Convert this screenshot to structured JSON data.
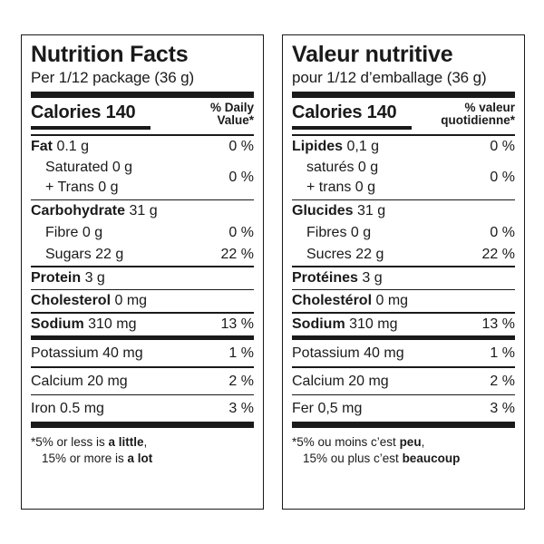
{
  "en": {
    "title": "Nutrition Facts",
    "serving": "Per 1/12 package (36 g)",
    "calories_label": "Calories 140",
    "dv_line1": "% Daily",
    "dv_line2": "Value*",
    "fat_label": "Fat",
    "fat_amount": "0.1 g",
    "fat_dv": "0 %",
    "saturated": "Saturated 0 g",
    "trans": "+ Trans 0 g",
    "sat_trans_dv": "0 %",
    "carb_label": "Carbohydrate",
    "carb_amount": "31 g",
    "fibre": "Fibre 0 g",
    "fibre_dv": "0 %",
    "sugars": "Sugars 22 g",
    "sugars_dv": "22 %",
    "protein_label": "Protein",
    "protein_amount": "3 g",
    "cholesterol_label": "Cholesterol",
    "cholesterol_amount": "0 mg",
    "sodium_label": "Sodium",
    "sodium_amount": "310 mg",
    "sodium_dv": "13 %",
    "potassium": "Potassium 40 mg",
    "potassium_dv": "1 %",
    "calcium": "Calcium 20 mg",
    "calcium_dv": "2 %",
    "iron": "Iron 0.5 mg",
    "iron_dv": "3 %",
    "foot1_pre": "*5% or less is ",
    "foot1_bold": "a little",
    "foot1_post": ",",
    "foot2_pre": "15% or more is ",
    "foot2_bold": "a lot"
  },
  "fr": {
    "title": "Valeur nutritive",
    "serving": "pour 1/12 d’emballage (36 g)",
    "calories_label": "Calories 140",
    "dv_line1": "% valeur",
    "dv_line2": "quotidienne*",
    "fat_label": "Lipides",
    "fat_amount": "0,1 g",
    "fat_dv": "0 %",
    "saturated": "saturés 0 g",
    "trans": "+ trans 0 g",
    "sat_trans_dv": "0 %",
    "carb_label": "Glucides",
    "carb_amount": "31 g",
    "fibre": "Fibres 0 g",
    "fibre_dv": "0 %",
    "sugars": "Sucres 22 g",
    "sugars_dv": "22 %",
    "protein_label": "Protéines",
    "protein_amount": "3 g",
    "cholesterol_label": "Cholestérol",
    "cholesterol_amount": "0 mg",
    "sodium_label": "Sodium",
    "sodium_amount": "310 mg",
    "sodium_dv": "13 %",
    "potassium": "Potassium 40 mg",
    "potassium_dv": "1 %",
    "calcium": "Calcium 20 mg",
    "calcium_dv": "2 %",
    "iron": "Fer 0,5 mg",
    "iron_dv": "3 %",
    "foot1_pre": "*5% ou moins c’est ",
    "foot1_bold": "peu",
    "foot1_post": ",",
    "foot2_pre": "15% ou plus c’est ",
    "foot2_bold": "beaucoup"
  }
}
